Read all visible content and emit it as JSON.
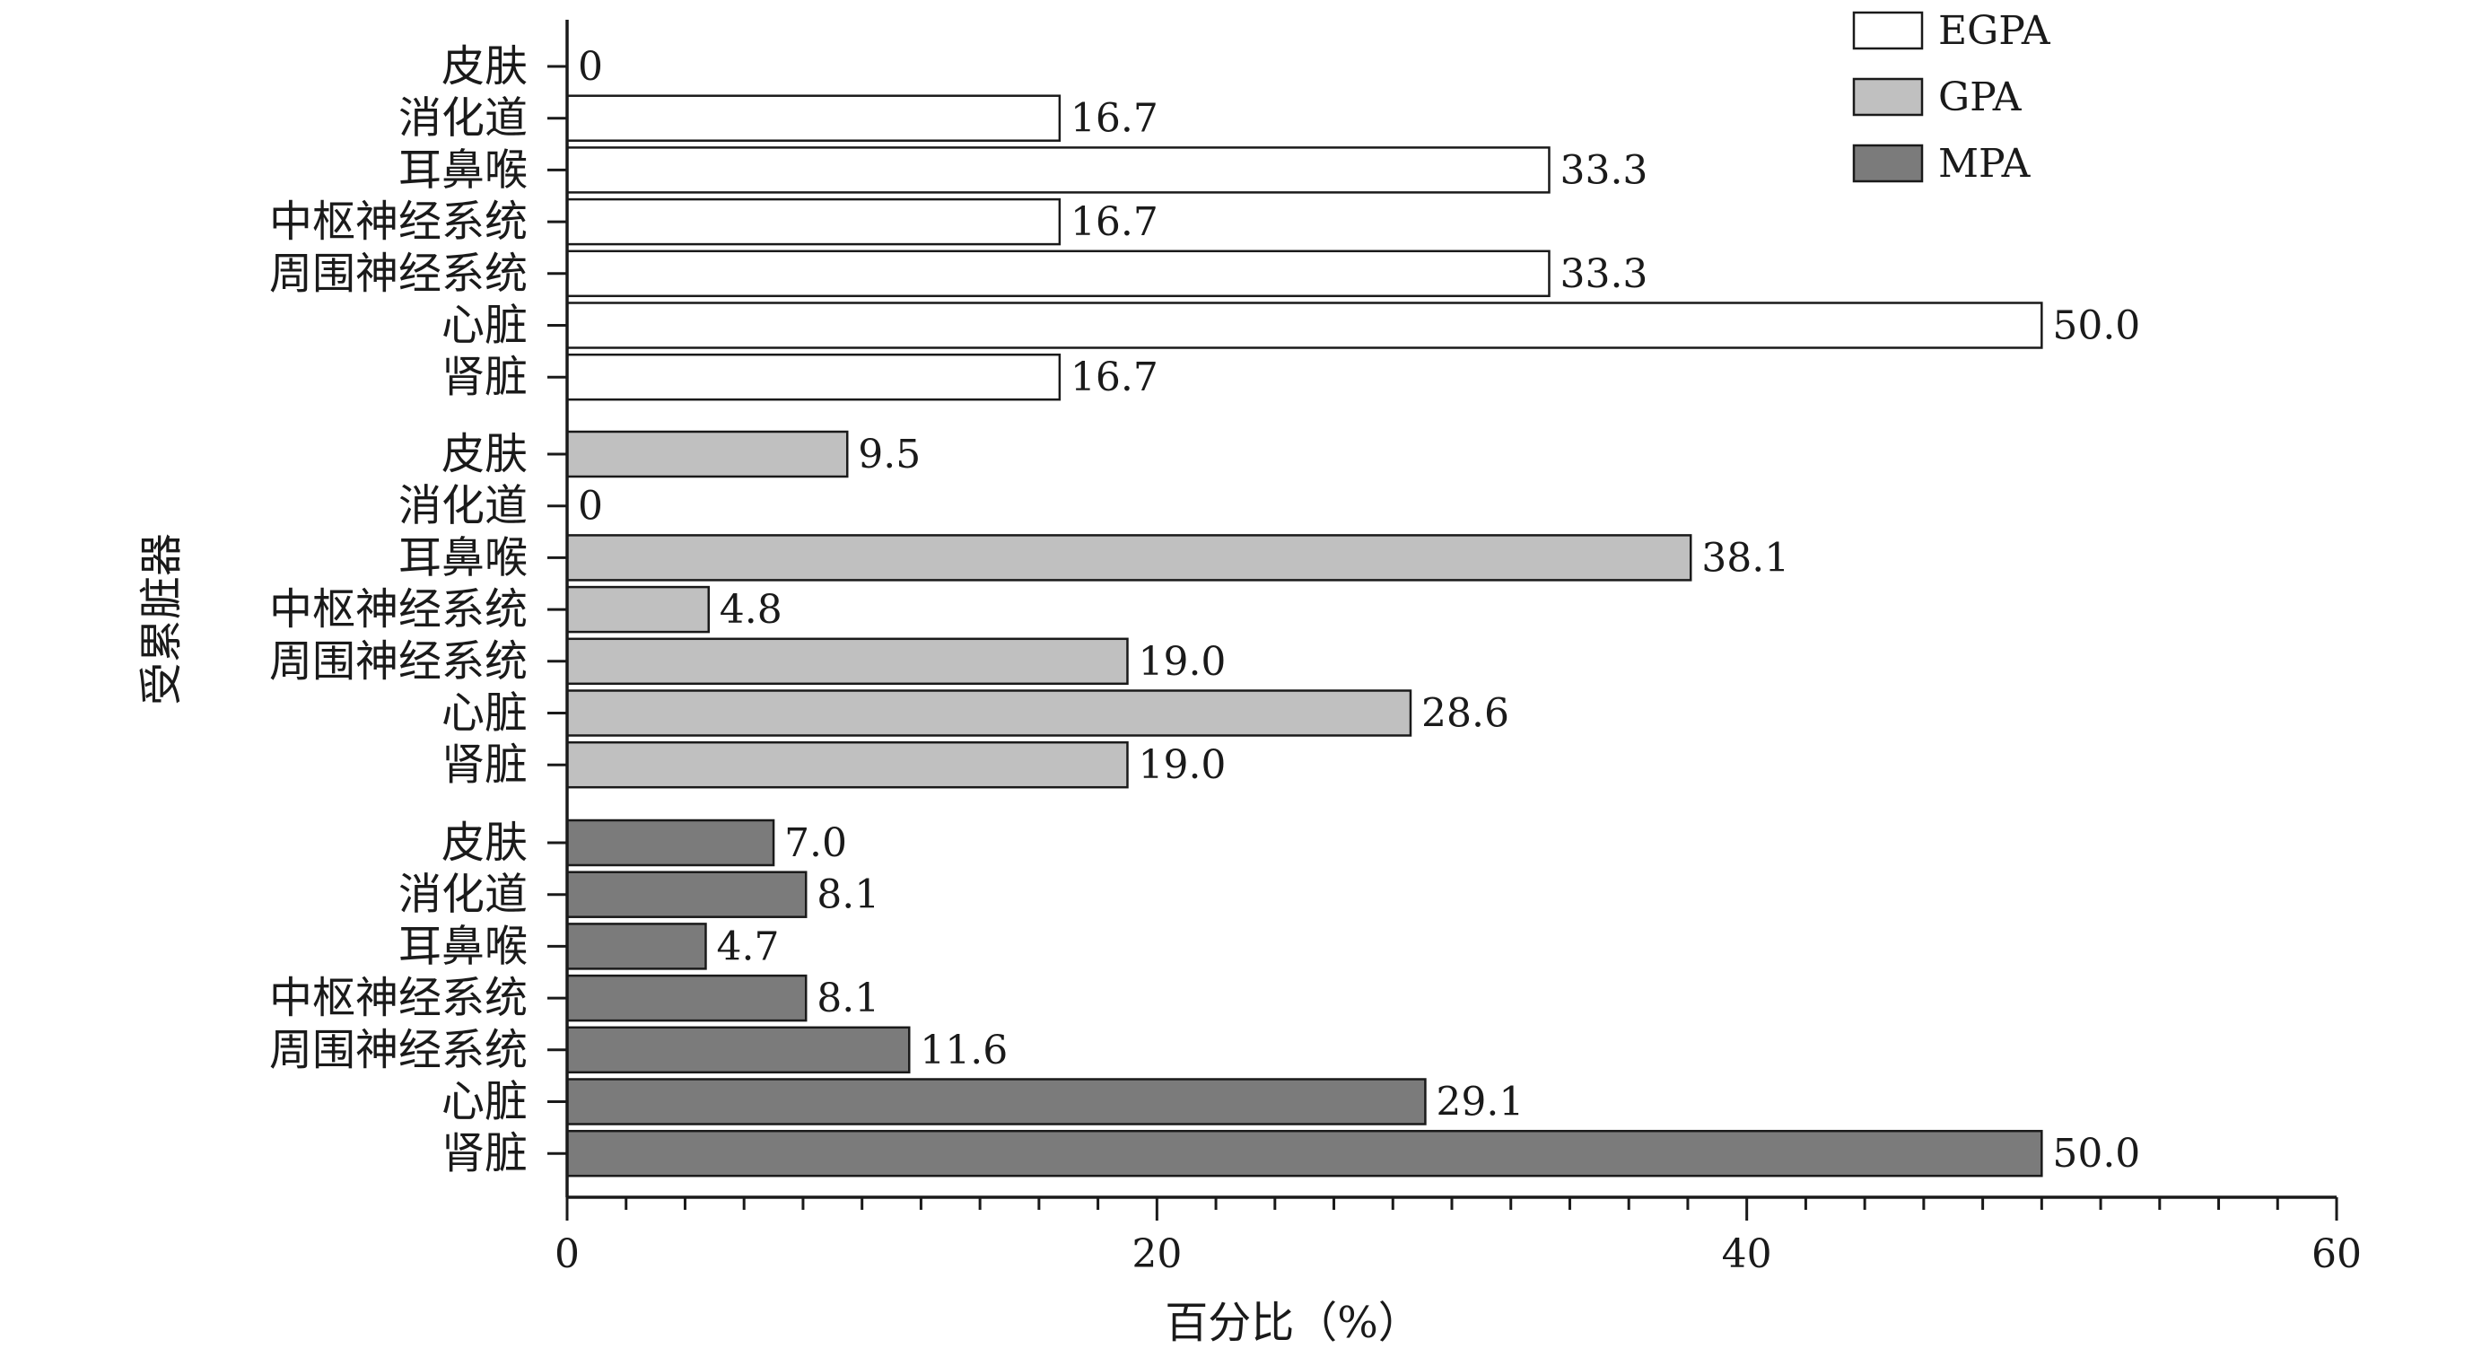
{
  "chart_data": {
    "type": "bar",
    "orientation": "horizontal",
    "xlabel": "百分比（%）",
    "ylabel": "受累脏器",
    "xlim": [
      0,
      60
    ],
    "x_ticks": [
      "0",
      "20",
      "40",
      "60"
    ],
    "grid": false,
    "legend_position": "top-right",
    "categories": [
      "皮肤",
      "消化道",
      "耳鼻喉",
      "中枢神经系统",
      "周围神经系统",
      "心脏",
      "肾脏"
    ],
    "series": [
      {
        "name": "EGPA",
        "color": "#ffffff",
        "values": [
          0,
          16.7,
          33.3,
          16.7,
          33.3,
          50.0,
          16.7
        ],
        "labels": [
          "0",
          "16.7",
          "33.3",
          "16.7",
          "33.3",
          "50.0",
          "16.7"
        ]
      },
      {
        "name": "GPA",
        "color": "#c0c0c0",
        "values": [
          9.5,
          0,
          38.1,
          4.8,
          19.0,
          28.6,
          19.0
        ],
        "labels": [
          "9.5",
          "0",
          "38.1",
          "4.8",
          "19.0",
          "28.6",
          "19.0"
        ]
      },
      {
        "name": "MPA",
        "color": "#7b7b7b",
        "values": [
          7.0,
          8.1,
          4.7,
          8.1,
          11.6,
          29.1,
          50.0
        ],
        "labels": [
          "7.0",
          "8.1",
          "4.7",
          "8.1",
          "11.6",
          "29.1",
          "50.0"
        ]
      }
    ]
  }
}
